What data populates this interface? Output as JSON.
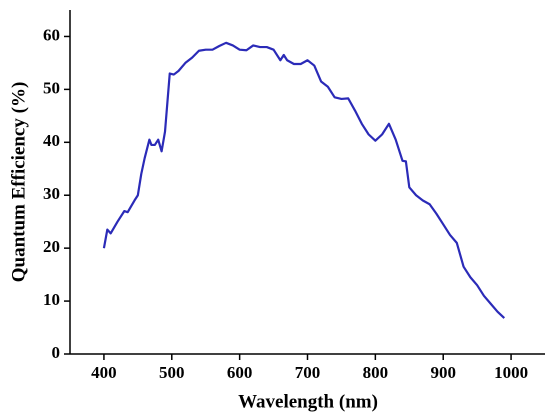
{
  "chart_data": {
    "type": "line",
    "x_label": "Wavelength (nm)",
    "y_label": "Quantum Efficiency (%)",
    "x": [
      400,
      405,
      410,
      420,
      430,
      435,
      445,
      450,
      455,
      460,
      467,
      470,
      475,
      480,
      485,
      490,
      497,
      503,
      510,
      520,
      530,
      540,
      550,
      560,
      570,
      580,
      590,
      600,
      610,
      620,
      630,
      640,
      650,
      660,
      665,
      670,
      680,
      690,
      700,
      710,
      720,
      730,
      740,
      750,
      760,
      770,
      780,
      790,
      800,
      810,
      820,
      830,
      840,
      845,
      850,
      860,
      870,
      880,
      890,
      900,
      910,
      920,
      930,
      940,
      950,
      960,
      970,
      980,
      990
    ],
    "series": [
      {
        "name": "Quantum Efficiency",
        "color": "#2b2bb8",
        "values": [
          20,
          23.5,
          22.8,
          25,
          27,
          26.8,
          29,
          30,
          34,
          37,
          40.5,
          39.5,
          39.5,
          40.5,
          38.3,
          42,
          53,
          52.8,
          53.5,
          55,
          56,
          57.3,
          57.5,
          57.5,
          58.2,
          58.8,
          58.3,
          57.5,
          57.4,
          58.3,
          58,
          58,
          57.5,
          55.5,
          56.5,
          55.5,
          54.8,
          54.8,
          55.5,
          54.5,
          51.5,
          50.5,
          48.5,
          48.2,
          48.3,
          46,
          43.5,
          41.5,
          40.3,
          41.5,
          43.5,
          40.5,
          36.5,
          36.4,
          31.5,
          30,
          29,
          28.3,
          26.5,
          24.5,
          22.5,
          21,
          16.5,
          14.5,
          13,
          11,
          9.5,
          8,
          6.8
        ]
      }
    ],
    "xlim": [
      350,
      1050
    ],
    "xticks": [
      400,
      500,
      600,
      700,
      800,
      900,
      1000
    ],
    "ylim": [
      0,
      65
    ],
    "yticks": [
      0,
      10,
      20,
      30,
      40,
      50,
      60
    ]
  }
}
